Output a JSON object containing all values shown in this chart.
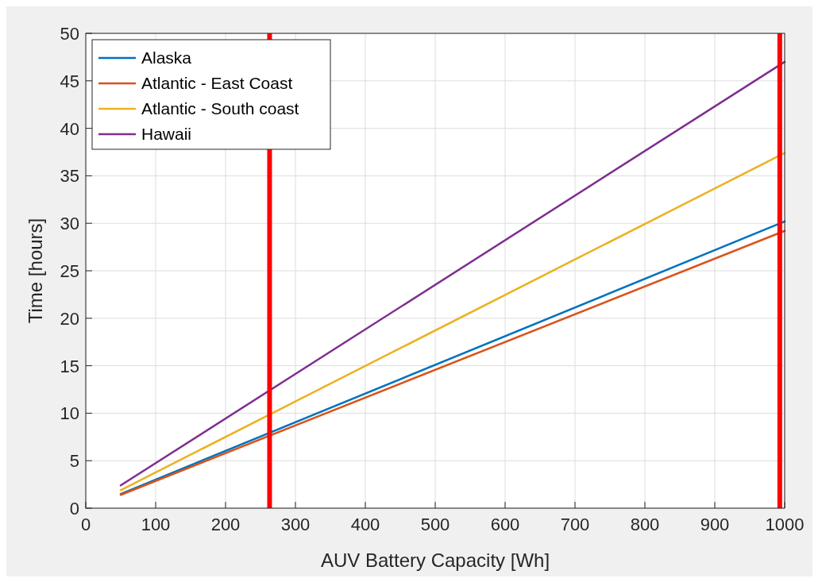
{
  "chart_data": {
    "type": "line",
    "xlabel": "AUV Battery Capacity [Wh]",
    "ylabel": "Time [hours]",
    "x": [
      50,
      1000
    ],
    "series": [
      {
        "name": "Alaska",
        "color": "#0072bd",
        "values": [
          1.5,
          30.2
        ]
      },
      {
        "name": "Atlantic - East Coast",
        "color": "#d95319",
        "values": [
          1.4,
          29.2
        ]
      },
      {
        "name": "Atlantic - South coast",
        "color": "#edb120",
        "values": [
          1.9,
          37.4
        ]
      },
      {
        "name": "Hawaii",
        "color": "#7e2f8e",
        "values": [
          2.4,
          47.0
        ]
      }
    ],
    "xlim": [
      0,
      1000
    ],
    "xticks": [
      0,
      100,
      200,
      300,
      400,
      500,
      600,
      700,
      800,
      900,
      1000
    ],
    "ylim": [
      0,
      50
    ],
    "yticks": [
      0,
      5,
      10,
      15,
      20,
      25,
      30,
      35,
      40,
      45,
      50
    ],
    "grid": true,
    "legend": "top left",
    "ref_lines": [
      {
        "axis": "x",
        "value": 263,
        "color": "#ff0000"
      },
      {
        "axis": "x",
        "value": 993,
        "color": "#ff0000"
      }
    ]
  }
}
